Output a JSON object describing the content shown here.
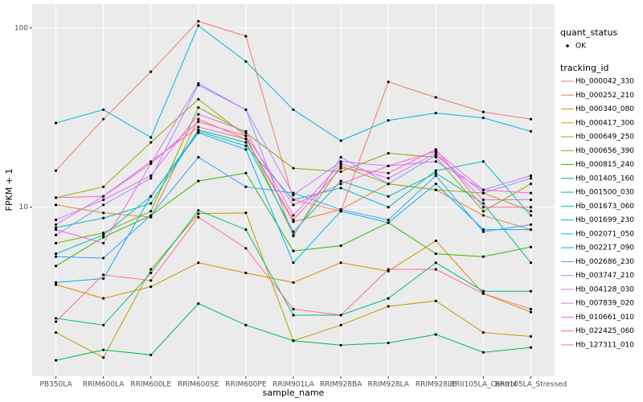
{
  "chart_data": {
    "type": "line",
    "x_label": "sample_name",
    "y_label": "FPKM + 1",
    "categories": [
      "PB350LA",
      "RRIM600LA",
      "RRIM600LE",
      "RRIM600SE",
      "RRIM600PE",
      "RRIM901LA",
      "RRIM928BA",
      "RRIM928LA",
      "RRIM928LE",
      "RRII105LA_Control",
      "RRII105LA_Stressed"
    ],
    "log_y": true,
    "grid": true,
    "ylim": [
      1.14,
      136
    ],
    "yticks": [
      10,
      100
    ],
    "point_color": "#000000",
    "shape_legend": {
      "title": "quant_status",
      "labels": [
        "OK"
      ]
    },
    "color_legend_title": "tracking_id",
    "series": [
      {
        "name": "Hb_000042_330",
        "color": "#F8766D",
        "values": [
          16,
          31,
          57,
          109,
          90,
          11,
          9.5,
          50,
          41,
          34,
          31
        ]
      },
      {
        "name": "Hb_000252_210",
        "color": "#EA8331",
        "values": [
          10.3,
          9.3,
          8.8,
          31,
          24,
          8.3,
          9.7,
          13.5,
          12.5,
          9,
          7.5
        ]
      },
      {
        "name": "Hb_000340_080",
        "color": "#D89000",
        "values": [
          3.7,
          3.1,
          3.6,
          4.9,
          4.3,
          3.8,
          4.9,
          4.4,
          6.5,
          3.3,
          2.6
        ]
      },
      {
        "name": "Hb_000417_300",
        "color": "#C09B00",
        "values": [
          2.0,
          1.45,
          4.5,
          9.2,
          9.3,
          1.8,
          2.2,
          2.8,
          3.0,
          2.0,
          1.9
        ]
      },
      {
        "name": "Hb_000649_250",
        "color": "#A3A500",
        "values": [
          11.3,
          13,
          23,
          40,
          25,
          7,
          17,
          13.5,
          12.5,
          12,
          9.5
        ]
      },
      {
        "name": "Hb_000656_390",
        "color": "#7CAE00",
        "values": [
          6.3,
          7.2,
          9.5,
          36,
          26,
          16.5,
          15.8,
          20,
          19,
          9.5,
          13.5
        ]
      },
      {
        "name": "Hb_000815_240",
        "color": "#39B600",
        "values": [
          4.7,
          6.8,
          9,
          14,
          15.5,
          5.7,
          6.1,
          8.2,
          5.5,
          5.3,
          6.0
        ]
      },
      {
        "name": "Hb_001405_160",
        "color": "#00BB4E",
        "values": [
          1.4,
          1.6,
          1.5,
          2.9,
          2.2,
          1.8,
          1.7,
          1.75,
          1.95,
          1.55,
          1.65
        ]
      },
      {
        "name": "Hb_001500_030",
        "color": "#00BF7D",
        "values": [
          2.4,
          2.2,
          4.3,
          9.6,
          7.5,
          2.5,
          2.5,
          3.1,
          4.9,
          3.4,
          3.4
        ]
      },
      {
        "name": "Hb_001673_060",
        "color": "#00C1A3",
        "values": [
          7.7,
          8.7,
          10.5,
          27,
          23,
          7.3,
          14,
          11.5,
          15.5,
          10.5,
          4.9
        ]
      },
      {
        "name": "Hb_001699_230",
        "color": "#00BFC4",
        "values": [
          5.5,
          7,
          11.5,
          26.5,
          22,
          11,
          12.8,
          10,
          16,
          18,
          9
        ]
      },
      {
        "name": "Hb_002071_050",
        "color": "#00BAE0",
        "values": [
          29.5,
          35,
          24.5,
          103,
          65,
          35,
          23.5,
          30.5,
          33.5,
          31.5,
          26.5
        ]
      },
      {
        "name": "Hb_002217_090",
        "color": "#00B0F6",
        "values": [
          3.8,
          4,
          11.5,
          26,
          21,
          4.9,
          9.5,
          8.2,
          13.5,
          7.5,
          7.5
        ]
      },
      {
        "name": "Hb_002686_230",
        "color": "#35A2FF",
        "values": [
          5.3,
          5.2,
          9,
          19,
          13,
          12,
          9.7,
          8.5,
          15,
          7.3,
          8
        ]
      },
      {
        "name": "Hb_003747_210",
        "color": "#9590FF",
        "values": [
          7,
          10.3,
          14.5,
          48,
          35,
          6.9,
          19,
          13.5,
          19.5,
          12,
          14.5
        ]
      },
      {
        "name": "Hb_004128_030",
        "color": "#C77CFF",
        "values": [
          8,
          11.5,
          17.5,
          49,
          35,
          11.7,
          18,
          17,
          18,
          12.5,
          15
        ]
      },
      {
        "name": "Hb_007839_020",
        "color": "#E76BF3",
        "values": [
          8.5,
          11,
          15,
          33,
          26.5,
          9,
          17.5,
          14.5,
          20,
          11,
          11
        ]
      },
      {
        "name": "Hb_010661_010",
        "color": "#FA62DB",
        "values": [
          7.5,
          6.3,
          17.5,
          30,
          25,
          10.3,
          13.5,
          17,
          20.5,
          12.5,
          12
        ]
      },
      {
        "name": "Hb_022425_060",
        "color": "#FF62BC",
        "values": [
          11.3,
          11.5,
          18,
          28,
          24,
          8.5,
          16.5,
          15.5,
          21,
          10,
          10
        ]
      },
      {
        "name": "Hb_127311_010",
        "color": "#FF6C91",
        "values": [
          2.3,
          4.2,
          3.9,
          8.8,
          5.9,
          2.7,
          2.5,
          4.5,
          4.5,
          3.3,
          2.7
        ]
      }
    ]
  }
}
